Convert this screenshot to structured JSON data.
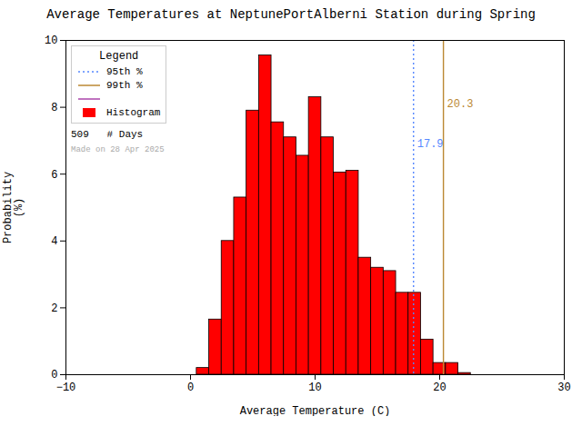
{
  "chart_data": {
    "type": "histogram",
    "title": "Average Temperatures at NeptunePortAlberni Station during Spring",
    "x_label": "Average Temperature (C)",
    "y_label": "Probability\n(%)",
    "bins": [
      0.5,
      1.5,
      2.5,
      3.5,
      4.5,
      5.5,
      6.5,
      7.5,
      8.5,
      9.5,
      10.5,
      11.5,
      12.5,
      13.5,
      14.5,
      15.5,
      16.5,
      17.5,
      18.5,
      19.5,
      20.5,
      21.5,
      22.5,
      23.5
    ],
    "values": [
      0.2,
      1.65,
      4.0,
      5.3,
      7.9,
      9.55,
      7.55,
      7.1,
      6.55,
      8.3,
      7.1,
      6.05,
      6.1,
      3.5,
      3.2,
      3.1,
      2.45,
      2.45,
      1.05,
      0.35,
      0.35,
      0.05,
      0.0
    ],
    "color": "#ff0000",
    "edge_color": "#000000",
    "xlim": [
      -10,
      30
    ],
    "ylim": [
      0,
      10
    ],
    "xticks": [
      -10,
      0,
      10,
      20,
      30
    ],
    "yticks": [
      0,
      2,
      4,
      6,
      8,
      10
    ],
    "grid": false,
    "legend": "upper left",
    "legend_title": "Legend",
    "legend_entries": [
      {
        "name": "95th %",
        "color": "#5588ff",
        "line_style": "dotted"
      },
      {
        "name": "99th %",
        "color": "#bb8833",
        "line_style": "solid"
      },
      {
        "name": null,
        "color": "#aa44aa",
        "line_style": "solid"
      },
      {
        "name": "Histogram",
        "color": "#ff0000",
        "marker": "square"
      }
    ],
    "reference_lines": [
      {
        "x": 17.9,
        "label": "17.9",
        "label_y": 6.9,
        "color": "#5588ff",
        "line_style": "dotted"
      },
      {
        "x": 20.3,
        "label": "20.3",
        "label_y": 8.1,
        "color": "#bb8833",
        "line_style": "solid"
      }
    ],
    "annotations": [
      {
        "text": "509   # Days",
        "color": "#000000"
      },
      {
        "text": "Made on 28 Apr 2025",
        "color": "#aaaaaa"
      }
    ]
  }
}
